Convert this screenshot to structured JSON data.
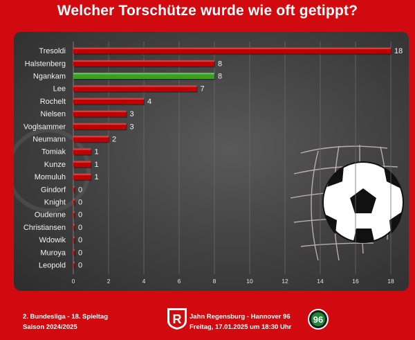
{
  "title": "Welcher Torschütze wurde wie oft getippt?",
  "footer": {
    "league": "2. Bundesliga - 18. Spieltag",
    "season": "Saison 2024/2025",
    "match": "Jahn Regensburg - Hannover 96",
    "datetime": "Freitag, 17.01.2025 um 18:30 Uhr",
    "home_logo_letter": "R",
    "away_logo_text": "96"
  },
  "colors": {
    "background": "#d10a10",
    "bar_default": "#c00000",
    "bar_highlight": "#3aa020"
  },
  "icons": {
    "home_logo": "jahn-regensburg-crest-icon",
    "away_logo": "hannover-96-crest-icon",
    "decoration": "soccer-ball-in-net-icon"
  },
  "chart_data": {
    "type": "bar",
    "orientation": "horizontal",
    "title": "Welcher Torschütze wurde wie oft getippt?",
    "xlabel": "",
    "ylabel": "",
    "xlim": [
      0,
      18
    ],
    "xticks": [
      0,
      2,
      4,
      6,
      8,
      10,
      12,
      14,
      16,
      18
    ],
    "grid": "vertical",
    "categories": [
      "Tresoldi",
      "Halstenberg",
      "Ngankam",
      "Lee",
      "Rochelt",
      "Nielsen",
      "Voglsammer",
      "Neumann",
      "Tomiak",
      "Kunze",
      "Momuluh",
      "Gindorf",
      "Knight",
      "Oudenne",
      "Christiansen",
      "Wdowik",
      "Muroya",
      "Leopold"
    ],
    "values": [
      18,
      8,
      8,
      7,
      4,
      3,
      3,
      2,
      1,
      1,
      1,
      0,
      0,
      0,
      0,
      0,
      0,
      0
    ],
    "highlight": [
      "Ngankam"
    ]
  }
}
